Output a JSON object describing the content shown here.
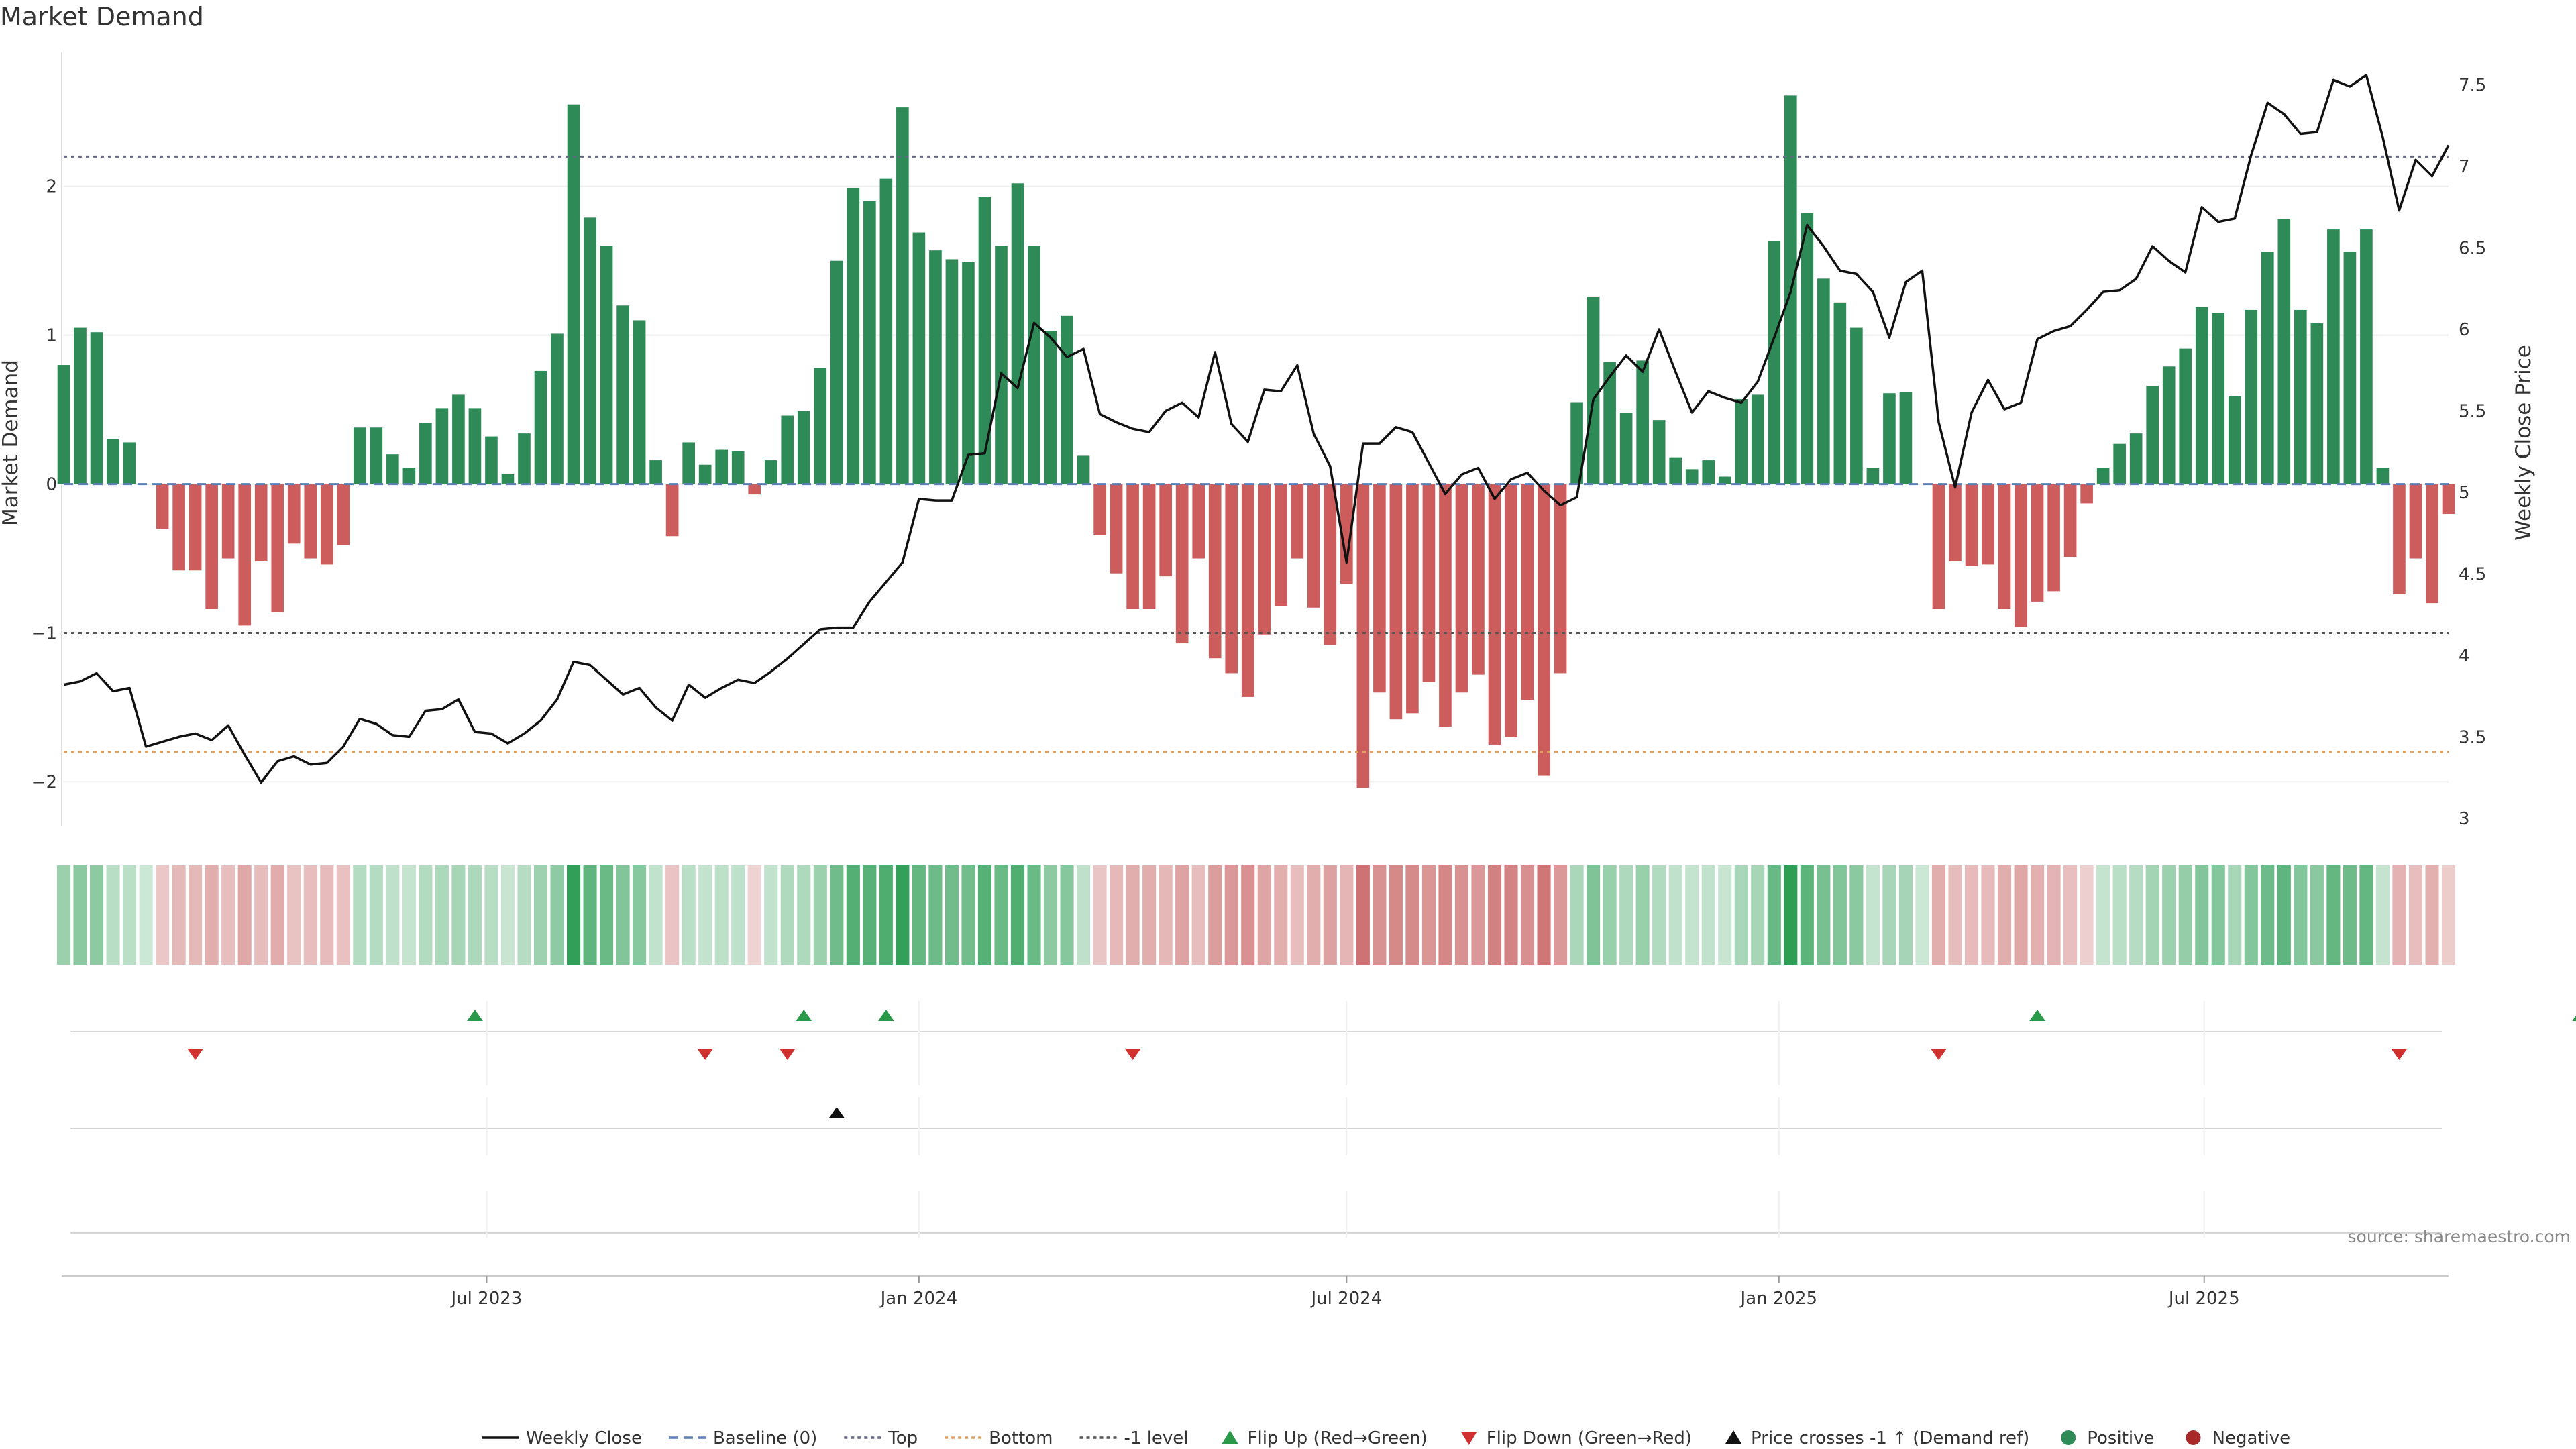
{
  "chart_data": {
    "type": "bar",
    "title": "Market Demand",
    "ylabel": "Market Demand",
    "y2label": "Weekly Close Price",
    "ylim": [
      -2.3,
      2.9
    ],
    "y2lim": [
      2.95,
      7.7
    ],
    "yticks": [
      "2",
      "1",
      "0",
      "−1",
      "−2"
    ],
    "yticks_values": [
      2,
      1,
      0,
      -1,
      -2
    ],
    "y2ticks": [
      "7.5",
      "7",
      "6.5",
      "6",
      "5.5",
      "5",
      "4.5",
      "4",
      "3.5",
      "3"
    ],
    "y2ticks_values": [
      7.5,
      7,
      6.5,
      6,
      5.5,
      5,
      4.5,
      4,
      3.5,
      3
    ],
    "x_start": "2023-01-02",
    "x_step_days": 7,
    "x_end": "2025-10-13",
    "xticks": [
      "Jul 2023",
      "Jan 2024",
      "Jul 2024",
      "Jan 2025",
      "Jul 2025"
    ],
    "xticks_dates": [
      "2023-07-01",
      "2024-01-01",
      "2024-07-01",
      "2025-01-01",
      "2025-07-01"
    ],
    "reference_lines": {
      "top": 2.2,
      "bottom": -1.8,
      "minus1": -1.0,
      "baseline": 0
    },
    "grid": true,
    "legend_position": "bottom",
    "series": [
      {
        "name": "Market Demand",
        "values": [
          0.8,
          1.05,
          1.02,
          0.3,
          0.28,
          0.0,
          -0.3,
          -0.58,
          -0.58,
          -0.84,
          -0.5,
          -0.95,
          -0.52,
          -0.86,
          -0.4,
          -0.5,
          -0.54,
          -0.41,
          0.38,
          0.38,
          0.2,
          0.11,
          0.41,
          0.51,
          0.6,
          0.51,
          0.32,
          0.07,
          0.34,
          0.76,
          1.01,
          2.55,
          1.79,
          1.6,
          1.2,
          1.1,
          0.16,
          -0.35,
          0.28,
          0.13,
          0.23,
          0.22,
          -0.07,
          0.16,
          0.46,
          0.49,
          0.78,
          1.5,
          1.99,
          1.9,
          2.05,
          2.53,
          1.69,
          1.57,
          1.51,
          1.49,
          1.93,
          1.6,
          2.02,
          1.6,
          1.03,
          1.13,
          0.19,
          -0.34,
          -0.6,
          -0.84,
          -0.84,
          -0.62,
          -1.07,
          -0.5,
          -1.17,
          -1.27,
          -1.43,
          -1.01,
          -0.82,
          -0.5,
          -0.83,
          -1.08,
          -0.67,
          -2.04,
          -1.4,
          -1.58,
          -1.54,
          -1.33,
          -1.63,
          -1.4,
          -1.28,
          -1.75,
          -1.7,
          -1.45,
          -1.96,
          -1.27,
          0.55,
          1.26,
          0.82,
          0.48,
          0.83,
          0.43,
          0.18,
          0.1,
          0.16,
          0.05,
          0.57,
          0.6,
          1.63,
          2.61,
          1.82,
          1.38,
          1.22,
          1.05,
          0.11,
          0.61,
          0.62,
          0.0,
          -0.84,
          -0.52,
          -0.55,
          -0.54,
          -0.84,
          -0.96,
          -0.79,
          -0.72,
          -0.49,
          -0.13,
          0.11,
          0.27,
          0.34,
          0.66,
          0.79,
          0.91,
          1.19,
          1.15,
          0.59,
          1.17,
          1.56,
          1.78,
          1.17,
          1.08,
          1.71,
          1.56,
          1.71,
          0.11,
          -0.74,
          -0.5,
          -0.8,
          -0.2
        ]
      },
      {
        "name": "Weekly Close",
        "values": [
          3.82,
          3.84,
          3.89,
          3.78,
          3.8,
          3.44,
          3.47,
          3.5,
          3.52,
          3.48,
          3.57,
          3.39,
          3.22,
          3.35,
          3.38,
          3.33,
          3.34,
          3.44,
          3.61,
          3.58,
          3.51,
          3.5,
          3.66,
          3.67,
          3.73,
          3.53,
          3.52,
          3.46,
          3.52,
          3.6,
          3.73,
          3.96,
          3.94,
          3.85,
          3.76,
          3.8,
          3.68,
          3.6,
          3.82,
          3.74,
          3.8,
          3.85,
          3.83,
          3.9,
          3.98,
          4.07,
          4.16,
          4.17,
          4.17,
          4.33,
          4.45,
          4.57,
          4.96,
          4.95,
          4.95,
          5.23,
          5.24,
          5.73,
          5.64,
          6.04,
          5.95,
          5.83,
          5.88,
          5.48,
          5.43,
          5.39,
          5.37,
          5.5,
          5.55,
          5.46,
          5.86,
          5.42,
          5.31,
          5.63,
          5.62,
          5.78,
          5.36,
          5.16,
          4.57,
          5.3,
          5.3,
          5.4,
          5.37,
          5.18,
          4.99,
          5.11,
          5.15,
          4.96,
          5.08,
          5.12,
          5.01,
          4.92,
          4.97,
          5.57,
          5.71,
          5.84,
          5.74,
          6.0,
          5.74,
          5.49,
          5.62,
          5.58,
          5.55,
          5.68,
          5.95,
          6.23,
          6.64,
          6.51,
          6.36,
          6.34,
          6.23,
          5.95,
          6.29,
          6.36,
          5.43,
          5.03,
          5.49,
          5.69,
          5.51,
          5.55,
          5.94,
          5.99,
          6.02,
          6.12,
          6.23,
          6.24,
          6.31,
          6.51,
          6.42,
          6.35,
          6.75,
          6.66,
          6.68,
          7.07,
          7.39,
          7.32,
          7.2,
          7.21,
          7.53,
          7.49,
          7.56,
          7.18,
          6.73,
          7.04,
          6.94,
          7.13
        ]
      }
    ],
    "flip_up_weeks": [
      25,
      45,
      50,
      120,
      153
    ],
    "flip_down_weeks": [
      8,
      39,
      44,
      65,
      114,
      142
    ],
    "price_cross_weeks": [
      47
    ],
    "source": "source: sharemaestro.com"
  },
  "legend": [
    {
      "label": "Weekly Close",
      "kind": "line-solid",
      "color": "#111111"
    },
    {
      "label": "Baseline (0)",
      "kind": "line-dash",
      "color": "#5b7fb8"
    },
    {
      "label": "Top",
      "kind": "line-dot",
      "color": "#666688"
    },
    {
      "label": "Bottom",
      "kind": "line-dot",
      "color": "#e0a060"
    },
    {
      "label": "-1 level",
      "kind": "line-dot",
      "color": "#555555"
    },
    {
      "label": "Flip Up (Red→Green)",
      "kind": "tri-up",
      "color": "#2a9a4a"
    },
    {
      "label": "Flip Down (Green→Red)",
      "kind": "tri-down",
      "color": "#d23030"
    },
    {
      "label": "Price crosses -1 ↑ (Demand ref)",
      "kind": "tri-up",
      "color": "#111111"
    },
    {
      "label": "Positive",
      "kind": "dot",
      "color": "#2e8b57"
    },
    {
      "label": "Negative",
      "kind": "dot",
      "color": "#a82828"
    }
  ],
  "colors": {
    "positive": "#2e8b57",
    "negative": "#cd5c5c",
    "price": "#111111",
    "top": "#666688",
    "bottom": "#e0a060",
    "minus1": "#555555",
    "baseline": "#5b7fb8",
    "flip_up": "#2a9a4a",
    "flip_down": "#d23030",
    "cross": "#111111"
  }
}
